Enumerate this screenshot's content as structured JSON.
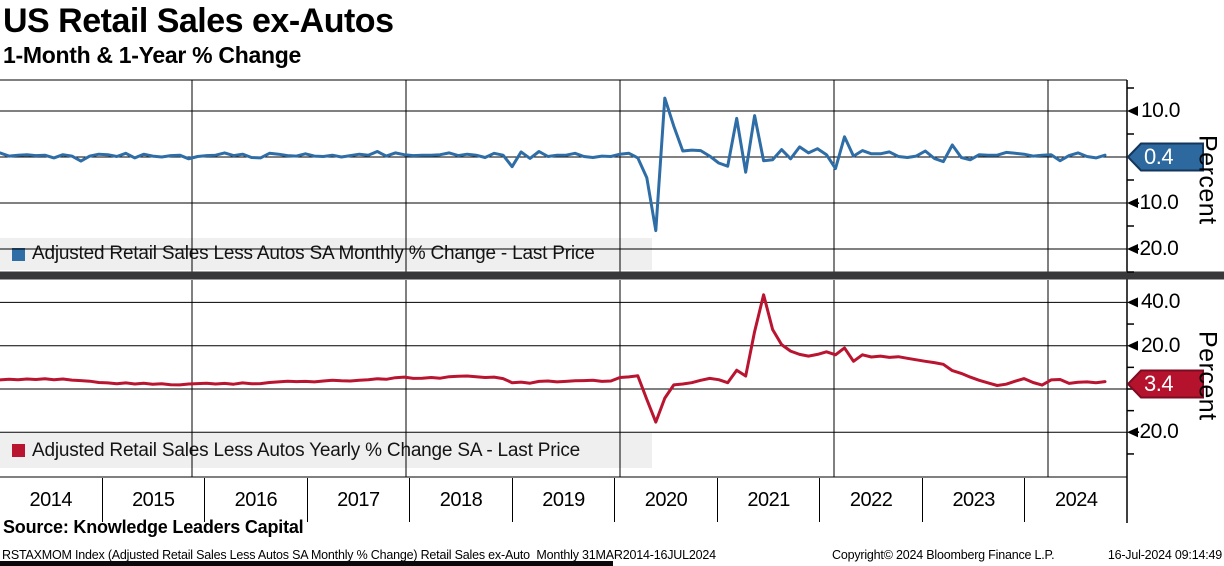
{
  "header": {
    "title": "US Retail Sales ex-Autos",
    "subtitle": "1-Month & 1-Year % Change"
  },
  "top_panel": {
    "legend_label": "Adjusted Retail Sales Less Autos SA Monthly % Change - Last Price",
    "last_price": "0.4",
    "axis_title": "Percent",
    "tick_labels": [
      "10.0",
      "-10.0",
      "-20.0"
    ]
  },
  "bottom_panel": {
    "legend_label": "Adjusted Retail Sales Less Autos Yearly % Change SA - Last Price",
    "last_price": "3.4",
    "axis_title": "Percent",
    "tick_labels": [
      "40.0",
      "20.0",
      "-20.0"
    ]
  },
  "x_axis": {
    "year_labels": [
      "2014",
      "2015",
      "2016",
      "2017",
      "2018",
      "2019",
      "2020",
      "2021",
      "2022",
      "2023",
      "2024"
    ]
  },
  "source_line": "Source: Knowledge Leaders Capital",
  "footer": {
    "description": "RSTAXMOM Index (Adjusted Retail Sales Less Autos SA Monthly % Change) Retail Sales ex-Auto  Monthly 31MAR2014-16JUL2024",
    "copyright": "Copyright© 2024 Bloomberg Finance L.P.",
    "timestamp": "16-Jul-2024 09:14:49"
  },
  "colors": {
    "monthly_line": "#2E6DA6",
    "yearly_line": "#B91430",
    "monthly_tag_fill": "#2D689E",
    "monthly_tag_border": "#14365A",
    "yearly_tag_fill": "#B5122E",
    "yearly_tag_border": "#7E0C20",
    "legend_bg": "#EFEFEF",
    "separator": "#38383A",
    "grid": "#000000"
  },
  "chart_data": [
    {
      "type": "line",
      "name": "Adjusted Retail Sales Less Autos SA Monthly % Change - Last Price",
      "frequency": "monthly",
      "x_start": "2014-03",
      "x_end": "2024-06",
      "ylabel": "Percent",
      "ylim": [
        -25,
        17
      ],
      "ytick_labeled": [
        10,
        -10,
        -20
      ],
      "y_gridlines": [
        10,
        0,
        -10,
        -20
      ],
      "last_price": 0.4,
      "values": [
        0.9,
        0.2,
        0.4,
        0.5,
        0.3,
        0.4,
        -0.2,
        0.5,
        0.2,
        -0.9,
        0.2,
        0.6,
        0.5,
        0.1,
        0.8,
        -0.2,
        0.6,
        0.2,
        0.0,
        0.3,
        0.4,
        -0.4,
        0.1,
        0.3,
        0.4,
        0.9,
        0.3,
        0.6,
        -0.1,
        -0.2,
        0.8,
        0.6,
        0.3,
        0.2,
        0.7,
        0.2,
        0.1,
        0.4,
        0.0,
        0.3,
        0.6,
        0.4,
        1.2,
        0.2,
        0.9,
        0.5,
        0.3,
        0.4,
        0.4,
        0.5,
        0.9,
        0.3,
        0.6,
        0.4,
        -0.1,
        0.8,
        0.4,
        -2.1,
        1.1,
        -0.3,
        1.2,
        0.1,
        0.4,
        0.4,
        0.8,
        0.1,
        -0.1,
        0.2,
        0.1,
        0.6,
        0.8,
        -0.2,
        -4.5,
        -16.0,
        12.8,
        6.7,
        1.3,
        1.5,
        1.4,
        0.2,
        -1.3,
        -2.0,
        8.4,
        -3.3,
        9.0,
        -0.8,
        -0.6,
        1.6,
        -0.4,
        2.2,
        0.9,
        1.8,
        0.5,
        -2.5,
        4.4,
        0.2,
        1.4,
        0.7,
        0.7,
        1.1,
        0.1,
        -0.1,
        0.2,
        1.3,
        -0.3,
        -1.0,
        2.6,
        -0.1,
        -0.6,
        0.5,
        0.4,
        0.4,
        1.0,
        0.8,
        0.6,
        0.2,
        0.4,
        0.5,
        -0.8,
        0.3,
        0.9,
        0.1,
        -0.2,
        0.4
      ]
    },
    {
      "type": "line",
      "name": "Adjusted Retail Sales Less Autos Yearly % Change SA - Last Price",
      "frequency": "monthly",
      "x_start": "2014-03",
      "x_end": "2024-06",
      "ylabel": "Percent",
      "ylim": [
        -40,
        50
      ],
      "ytick_labeled": [
        40,
        20,
        -20
      ],
      "y_gridlines": [
        40,
        20,
        0,
        -20
      ],
      "last_price": 3.4,
      "values": [
        4.2,
        4.5,
        4.3,
        4.6,
        4.4,
        4.7,
        4.3,
        4.6,
        4.1,
        3.9,
        3.6,
        3.0,
        2.8,
        2.4,
        2.8,
        2.3,
        2.7,
        2.2,
        2.4,
        2.0,
        1.9,
        2.3,
        2.5,
        2.7,
        2.3,
        2.6,
        2.2,
        2.8,
        2.4,
        2.5,
        3.0,
        3.3,
        3.6,
        3.4,
        3.5,
        3.3,
        3.7,
        4.0,
        3.8,
        3.7,
        4.0,
        4.3,
        4.7,
        4.5,
        5.2,
        5.5,
        4.9,
        5.0,
        5.3,
        5.0,
        5.7,
        5.9,
        6.0,
        5.7,
        5.3,
        5.5,
        4.8,
        2.9,
        3.2,
        2.7,
        3.5,
        3.7,
        3.3,
        3.5,
        3.8,
        3.9,
        4.0,
        3.5,
        3.7,
        5.3,
        5.6,
        6.1,
        -4.8,
        -15.3,
        -4.2,
        1.9,
        2.3,
        2.9,
        4.0,
        4.9,
        4.3,
        2.9,
        8.7,
        6.0,
        26.5,
        43.5,
        27.5,
        20.5,
        17.5,
        16.0,
        15.2,
        16.0,
        17.2,
        15.8,
        19.0,
        12.8,
        15.8,
        14.8,
        15.2,
        14.6,
        14.9,
        14.2,
        13.5,
        12.8,
        12.2,
        11.4,
        8.5,
        7.2,
        5.5,
        4.0,
        2.8,
        1.6,
        2.2,
        3.6,
        4.8,
        3.0,
        1.8,
        4.2,
        4.4,
        2.6,
        3.1,
        3.3,
        2.9,
        3.4
      ]
    }
  ]
}
